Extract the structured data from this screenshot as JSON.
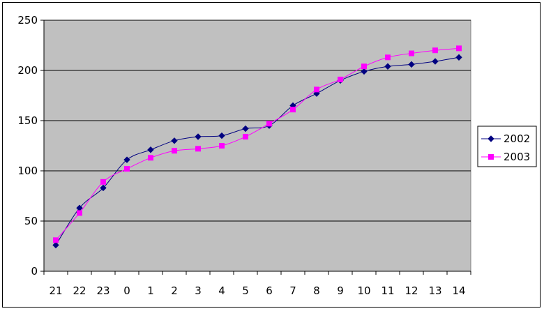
{
  "chart_data": {
    "type": "line",
    "categories": [
      "21",
      "22",
      "23",
      "0",
      "1",
      "2",
      "3",
      "4",
      "5",
      "6",
      "7",
      "8",
      "9",
      "10",
      "11",
      "12",
      "13",
      "14"
    ],
    "ylim": [
      0,
      250
    ],
    "yticks": [
      "0",
      "50",
      "100",
      "150",
      "200",
      "250"
    ],
    "grid": true,
    "legend_position": "right",
    "plot_background": "#c0c0c0",
    "series": [
      {
        "name": "2002",
        "color": "#000080",
        "marker": "diamond",
        "values": [
          26,
          63,
          83,
          111,
          121,
          130,
          134,
          135,
          142,
          145,
          165,
          177,
          190,
          199,
          204,
          206,
          209,
          213
        ]
      },
      {
        "name": "2003",
        "color": "#ff00ff",
        "marker": "square",
        "values": [
          31,
          58,
          89,
          102,
          113,
          120,
          122,
          125,
          134,
          147,
          161,
          181,
          191,
          204,
          213,
          217,
          220,
          222
        ]
      }
    ]
  }
}
